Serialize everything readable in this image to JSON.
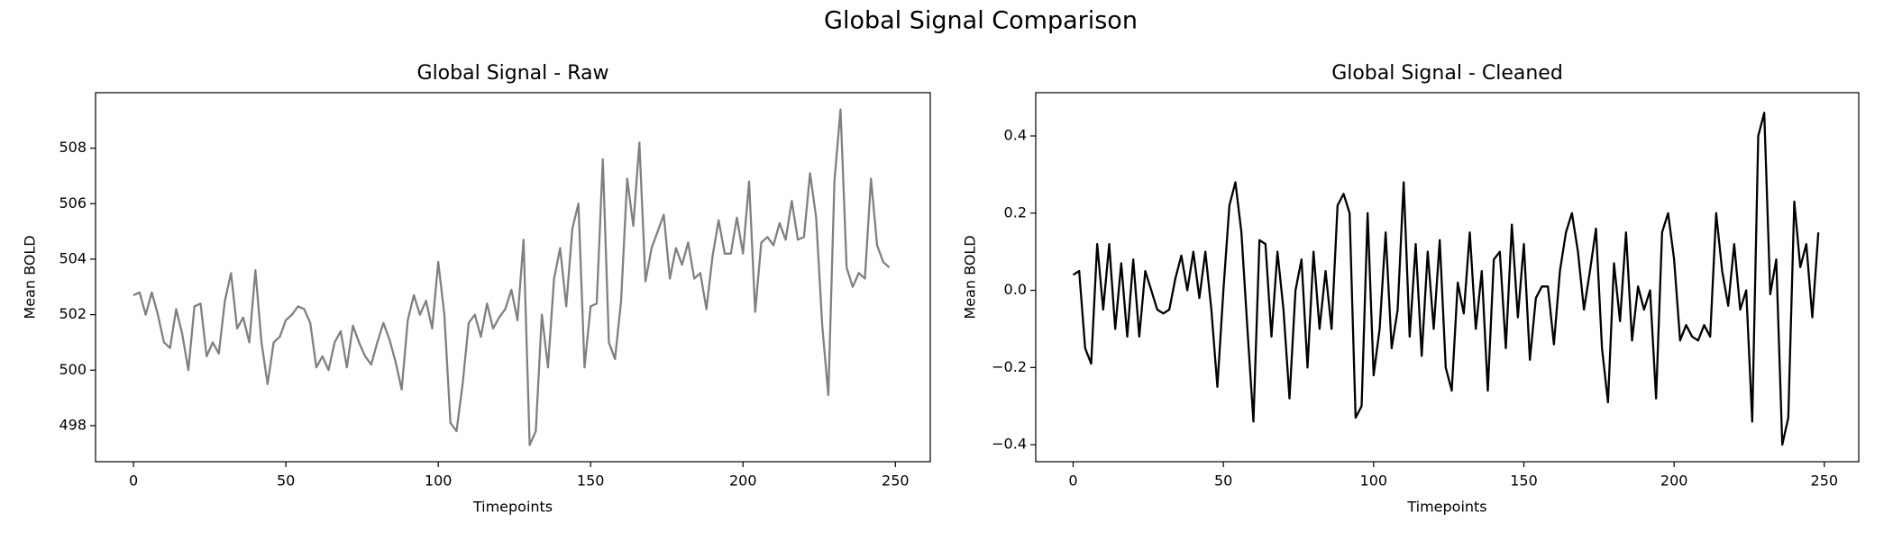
{
  "title": "Global Signal Comparison",
  "chart_data": [
    {
      "type": "line",
      "title": "Global Signal - Raw",
      "x_label": "Timepoints",
      "y_label": "Mean BOLD",
      "xlim": [
        -12.45,
        261.45
      ],
      "ylim": [
        496.7,
        510.0
      ],
      "xticks": [
        0,
        50,
        100,
        150,
        200,
        250
      ],
      "yticks": [
        498,
        500,
        502,
        504,
        506,
        508
      ],
      "x": [
        0,
        2,
        4,
        6,
        8,
        10,
        12,
        14,
        16,
        18,
        20,
        22,
        24,
        26,
        28,
        30,
        32,
        34,
        36,
        38,
        40,
        42,
        44,
        46,
        48,
        50,
        52,
        54,
        56,
        58,
        60,
        62,
        64,
        66,
        68,
        70,
        72,
        74,
        76,
        78,
        80,
        82,
        84,
        86,
        88,
        90,
        92,
        94,
        96,
        98,
        100,
        102,
        104,
        106,
        108,
        110,
        112,
        114,
        116,
        118,
        120,
        122,
        124,
        126,
        128,
        130,
        132,
        134,
        136,
        138,
        140,
        142,
        144,
        146,
        148,
        150,
        152,
        154,
        156,
        158,
        160,
        162,
        164,
        166,
        168,
        170,
        172,
        174,
        176,
        178,
        180,
        182,
        184,
        186,
        188,
        190,
        192,
        194,
        196,
        198,
        200,
        202,
        204,
        206,
        208,
        210,
        212,
        214,
        216,
        218,
        220,
        222,
        224,
        226,
        228,
        230,
        232,
        234,
        236,
        238,
        240,
        242,
        244,
        246,
        248
      ],
      "series": [
        {
          "color": "#808080",
          "values": [
            502.7,
            502.8,
            502.0,
            502.8,
            502.0,
            501.0,
            500.8,
            502.2,
            501.3,
            500.0,
            502.3,
            502.4,
            500.5,
            501.0,
            500.6,
            502.5,
            503.5,
            501.5,
            501.9,
            501.0,
            503.6,
            501.0,
            499.5,
            501.0,
            501.2,
            501.8,
            502.0,
            502.3,
            502.2,
            501.7,
            500.1,
            500.5,
            500.0,
            501.0,
            501.4,
            500.1,
            501.6,
            501.0,
            500.5,
            500.2,
            501.0,
            501.7,
            501.1,
            500.3,
            499.3,
            501.8,
            502.7,
            502.0,
            502.5,
            501.5,
            503.9,
            502.0,
            498.1,
            497.8,
            499.5,
            501.7,
            502.0,
            501.2,
            502.4,
            501.5,
            501.9,
            502.2,
            502.9,
            501.8,
            504.7,
            497.3,
            497.8,
            502.0,
            500.1,
            503.3,
            504.4,
            502.3,
            505.1,
            506.0,
            500.1,
            502.3,
            502.4,
            507.6,
            501.0,
            500.4,
            502.5,
            506.9,
            505.2,
            508.2,
            503.2,
            504.4,
            505.0,
            505.6,
            503.3,
            504.4,
            503.8,
            504.6,
            503.3,
            503.5,
            502.2,
            504.1,
            505.4,
            504.2,
            504.2,
            505.5,
            504.2,
            506.8,
            502.1,
            504.6,
            504.8,
            504.5,
            505.3,
            504.7,
            506.1,
            504.7,
            504.8,
            507.1,
            505.5,
            501.6,
            499.1,
            506.8,
            509.4,
            503.7,
            503.0,
            503.5,
            503.3,
            506.9,
            504.5,
            503.9,
            503.7
          ]
        }
      ]
    },
    {
      "type": "line",
      "title": "Global Signal - Cleaned",
      "x_label": "Timepoints",
      "y_label": "Mean BOLD",
      "xlim": [
        -12.45,
        261.45
      ],
      "ylim": [
        -0.444,
        0.512
      ],
      "xticks": [
        0,
        50,
        100,
        150,
        200,
        250
      ],
      "yticks": [
        {
          "value": -0.4,
          "label": "−0.4"
        },
        {
          "value": -0.2,
          "label": "−0.2"
        },
        {
          "value": 0,
          "label": "0.0"
        },
        0.2,
        0.4
      ],
      "x": [
        0,
        2,
        4,
        6,
        8,
        10,
        12,
        14,
        16,
        18,
        20,
        22,
        24,
        26,
        28,
        30,
        32,
        34,
        36,
        38,
        40,
        42,
        44,
        46,
        48,
        50,
        52,
        54,
        56,
        58,
        60,
        62,
        64,
        66,
        68,
        70,
        72,
        74,
        76,
        78,
        80,
        82,
        84,
        86,
        88,
        90,
        92,
        94,
        96,
        98,
        100,
        102,
        104,
        106,
        108,
        110,
        112,
        114,
        116,
        118,
        120,
        122,
        124,
        126,
        128,
        130,
        132,
        134,
        136,
        138,
        140,
        142,
        144,
        146,
        148,
        150,
        152,
        154,
        156,
        158,
        160,
        162,
        164,
        166,
        168,
        170,
        172,
        174,
        176,
        178,
        180,
        182,
        184,
        186,
        188,
        190,
        192,
        194,
        196,
        198,
        200,
        202,
        204,
        206,
        208,
        210,
        212,
        214,
        216,
        218,
        220,
        222,
        224,
        226,
        228,
        230,
        232,
        234,
        236,
        238,
        240,
        242,
        244,
        246,
        248
      ],
      "series": [
        {
          "color": "#000000",
          "values": [
            0.04,
            0.05,
            -0.15,
            -0.19,
            0.12,
            -0.05,
            0.12,
            -0.1,
            0.07,
            -0.12,
            0.08,
            -0.12,
            0.05,
            0.0,
            -0.05,
            -0.06,
            -0.05,
            0.03,
            0.09,
            0.0,
            0.1,
            -0.02,
            0.1,
            -0.05,
            -0.25,
            0.0,
            0.22,
            0.28,
            0.15,
            -0.1,
            -0.34,
            0.13,
            0.12,
            -0.12,
            0.1,
            -0.05,
            -0.28,
            0.0,
            0.08,
            -0.2,
            0.1,
            -0.1,
            0.05,
            -0.1,
            0.22,
            0.25,
            0.2,
            -0.33,
            -0.3,
            0.2,
            -0.22,
            -0.1,
            0.15,
            -0.15,
            -0.05,
            0.28,
            -0.12,
            0.12,
            -0.17,
            0.1,
            -0.1,
            0.13,
            -0.2,
            -0.26,
            0.02,
            -0.06,
            0.15,
            -0.1,
            0.05,
            -0.26,
            0.08,
            0.1,
            -0.15,
            0.17,
            -0.07,
            0.12,
            -0.18,
            -0.02,
            0.01,
            0.01,
            -0.14,
            0.05,
            0.15,
            0.2,
            0.1,
            -0.05,
            0.05,
            0.16,
            -0.15,
            -0.29,
            0.07,
            -0.08,
            0.15,
            -0.13,
            0.01,
            -0.05,
            0.0,
            -0.28,
            0.15,
            0.2,
            0.08,
            -0.13,
            -0.09,
            -0.12,
            -0.13,
            -0.09,
            -0.12,
            0.2,
            0.05,
            -0.04,
            0.12,
            -0.05,
            0.0,
            -0.34,
            0.4,
            0.46,
            -0.01,
            0.08,
            -0.4,
            -0.33,
            0.23,
            0.06,
            0.12,
            -0.07,
            0.15
          ]
        }
      ]
    }
  ]
}
